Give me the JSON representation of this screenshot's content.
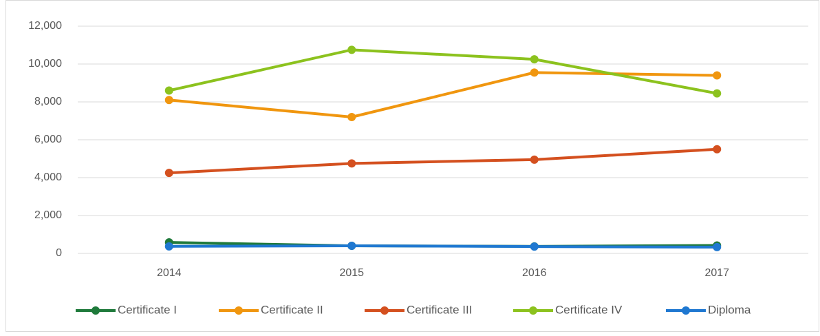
{
  "chart_data": {
    "type": "line",
    "categories": [
      "2014",
      "2015",
      "2016",
      "2017"
    ],
    "series": [
      {
        "name": "Certificate I",
        "color": "#1f7a3b",
        "values": [
          580,
          400,
          370,
          420
        ]
      },
      {
        "name": "Certificate II",
        "color": "#f0960f",
        "values": [
          8100,
          7200,
          9550,
          9400
        ]
      },
      {
        "name": "Certificate III",
        "color": "#d4501f",
        "values": [
          4250,
          4750,
          4950,
          5500
        ]
      },
      {
        "name": "Certificate IV",
        "color": "#8cc21e",
        "values": [
          8600,
          10750,
          10250,
          8450
        ]
      },
      {
        "name": "Diploma",
        "color": "#1f78d1",
        "values": [
          370,
          400,
          360,
          330
        ]
      }
    ],
    "ylim": [
      0,
      12000
    ],
    "yticks": [
      0,
      {
        "value": 2000,
        "label": "2,000"
      },
      {
        "value": 4000,
        "label": "4,000"
      },
      {
        "value": 6000,
        "label": "6,000"
      },
      {
        "value": 8000,
        "label": "8,000"
      },
      {
        "value": 10000,
        "label": "10,000"
      },
      {
        "value": 12000,
        "label": "12,000"
      }
    ],
    "grid": true,
    "legend": "bottom"
  }
}
